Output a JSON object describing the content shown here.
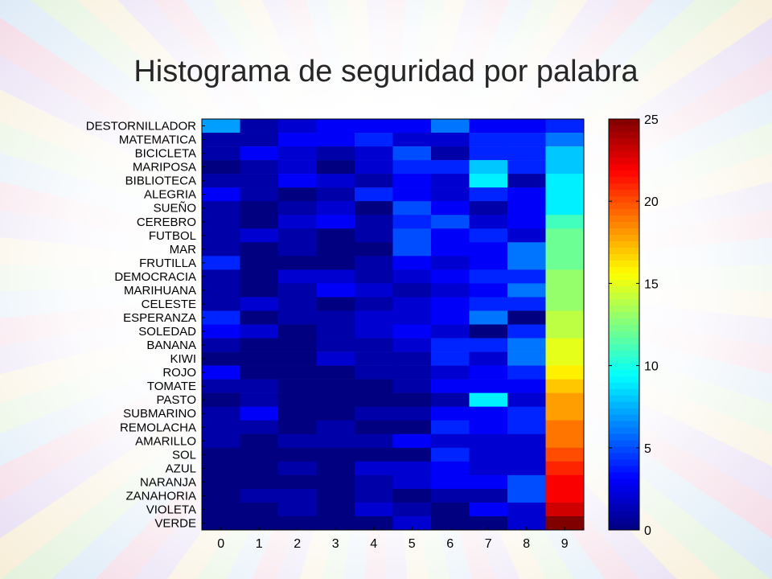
{
  "slide": {
    "title": "Histograma de seguridad por palabra"
  },
  "chart_data": {
    "type": "heatmap",
    "title": "Histograma de seguridad por palabra",
    "xlabel": "",
    "ylabel": "",
    "x_categories": [
      "0",
      "1",
      "2",
      "3",
      "4",
      "5",
      "6",
      "7",
      "8",
      "9"
    ],
    "y_categories": [
      "DESTORNILLADOR",
      "MATEMATICA",
      "BICICLETA",
      "MARIPOSA",
      "BIBLIOTECA",
      "ALEGRIA",
      "SUEÑO",
      "CEREBRO",
      "FUTBOL",
      "MAR",
      "FRUTILLA",
      "DEMOCRACIA",
      "MARIHUANA",
      "CELESTE",
      "ESPERANZA",
      "SOLEDAD",
      "BANANA",
      "KIWI",
      "ROJO",
      "TOMATE",
      "PASTO",
      "SUBMARINO",
      "REMOLACHA",
      "AMARILLO",
      "SOL",
      "AZUL",
      "NARANJA",
      "ZANAHORIA",
      "VIOLETA",
      "VERDE"
    ],
    "values": [
      [
        7,
        1,
        2,
        3,
        3,
        3,
        6,
        3,
        3,
        4
      ],
      [
        1,
        1,
        3,
        3,
        4,
        2,
        2,
        4,
        4,
        6
      ],
      [
        1,
        3,
        2,
        1,
        2,
        5,
        1,
        4,
        4,
        8
      ],
      [
        0,
        1,
        2,
        0,
        2,
        4,
        4,
        8,
        4,
        8
      ],
      [
        1,
        1,
        3,
        2,
        1,
        3,
        2,
        9,
        1,
        9
      ],
      [
        3,
        1,
        0,
        1,
        4,
        3,
        2,
        4,
        3,
        9
      ],
      [
        1,
        0,
        1,
        2,
        0,
        5,
        3,
        1,
        3,
        9
      ],
      [
        1,
        0,
        2,
        3,
        1,
        4,
        5,
        2,
        3,
        11
      ],
      [
        1,
        2,
        1,
        0,
        1,
        5,
        3,
        4,
        2,
        12
      ],
      [
        1,
        0,
        1,
        0,
        0,
        5,
        3,
        3,
        6,
        12
      ],
      [
        4,
        0,
        0,
        0,
        1,
        3,
        2,
        3,
        6,
        12
      ],
      [
        1,
        0,
        2,
        2,
        1,
        2,
        3,
        4,
        4,
        13
      ],
      [
        1,
        0,
        1,
        3,
        2,
        1,
        2,
        3,
        6,
        13
      ],
      [
        1,
        2,
        1,
        0,
        1,
        2,
        3,
        4,
        4,
        13
      ],
      [
        4,
        0,
        1,
        1,
        2,
        2,
        3,
        6,
        0,
        14
      ],
      [
        3,
        2,
        0,
        1,
        2,
        3,
        2,
        0,
        4,
        14
      ],
      [
        1,
        0,
        0,
        1,
        1,
        2,
        4,
        4,
        6,
        15
      ],
      [
        0,
        0,
        0,
        2,
        1,
        1,
        4,
        2,
        6,
        15
      ],
      [
        3,
        0,
        0,
        0,
        1,
        1,
        2,
        3,
        4,
        16
      ],
      [
        1,
        1,
        0,
        0,
        0,
        1,
        3,
        3,
        3,
        17
      ],
      [
        0,
        1,
        0,
        0,
        0,
        0,
        1,
        9,
        2,
        18
      ],
      [
        1,
        3,
        0,
        0,
        1,
        1,
        3,
        3,
        4,
        18
      ],
      [
        1,
        1,
        0,
        1,
        0,
        0,
        4,
        3,
        4,
        19
      ],
      [
        1,
        0,
        1,
        1,
        1,
        3,
        2,
        2,
        2,
        19
      ],
      [
        0,
        0,
        0,
        0,
        0,
        0,
        4,
        2,
        2,
        20
      ],
      [
        0,
        0,
        1,
        0,
        2,
        2,
        3,
        2,
        2,
        21
      ],
      [
        0,
        0,
        0,
        0,
        1,
        2,
        3,
        3,
        5,
        22
      ],
      [
        0,
        1,
        1,
        0,
        1,
        0,
        1,
        1,
        5,
        22
      ],
      [
        0,
        0,
        1,
        0,
        2,
        1,
        0,
        3,
        2,
        23
      ],
      [
        0,
        0,
        0,
        0,
        0,
        2,
        0,
        0,
        2,
        25
      ]
    ],
    "colorbar": {
      "range": [
        0,
        25
      ],
      "ticks": [
        "0",
        "5",
        "10",
        "15",
        "20",
        "25"
      ],
      "colormap": "jet"
    },
    "grid": false
  }
}
